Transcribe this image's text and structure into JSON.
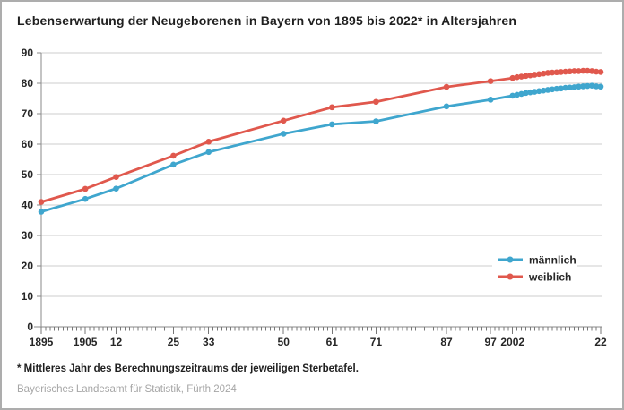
{
  "title": "Lebenserwartung der Neugeborenen in Bayern von 1895 bis 2022* in Altersjahren",
  "footnote": "* Mittleres Jahr des Berechnungszeitraums der jeweiligen Sterbetafel.",
  "source": "Bayerisches Landesamt für Statistik, Fürth 2024",
  "colors": {
    "maennlich": "#3FA6CE",
    "weiblich": "#E0584D",
    "grid": "#cccccc",
    "axis": "#8a8a8a",
    "tick": "#777777",
    "text": "#262626",
    "source_text": "#a6a6a6",
    "legend_bg": "#ffffff"
  },
  "chart_data": {
    "type": "line",
    "title": "Lebenserwartung der Neugeborenen in Bayern von 1895 bis 2022* in Altersjahren",
    "xlabel": "",
    "ylabel": "",
    "xlim": [
      1895,
      2022
    ],
    "ylim": [
      0,
      90
    ],
    "ytick_step": 10,
    "grid": true,
    "legend_position": "right-middle",
    "x": [
      1895,
      1905,
      1912,
      1925,
      1933,
      1950,
      1961,
      1971,
      1987,
      1997,
      2002,
      2003,
      2004,
      2005,
      2006,
      2007,
      2008,
      2009,
      2010,
      2011,
      2012,
      2013,
      2014,
      2015,
      2016,
      2017,
      2018,
      2019,
      2020,
      2021,
      2022
    ],
    "xticks": [
      {
        "year": 1895,
        "label": "1895"
      },
      {
        "year": 1905,
        "label": "1905"
      },
      {
        "year": 1912,
        "label": "12"
      },
      {
        "year": 1925,
        "label": "25"
      },
      {
        "year": 1933,
        "label": "33"
      },
      {
        "year": 1950,
        "label": "50"
      },
      {
        "year": 1961,
        "label": "61"
      },
      {
        "year": 1971,
        "label": "71"
      },
      {
        "year": 1987,
        "label": "87"
      },
      {
        "year": 1997,
        "label": "97"
      },
      {
        "year": 2002,
        "label": "2002"
      },
      {
        "year": 2022,
        "label": "22"
      }
    ],
    "series": [
      {
        "name": "männlich",
        "color_key": "maennlich",
        "values": [
          37.8,
          42.0,
          45.4,
          53.3,
          57.4,
          63.4,
          66.5,
          67.5,
          72.4,
          74.6,
          75.9,
          76.2,
          76.5,
          76.8,
          77.0,
          77.2,
          77.4,
          77.6,
          77.8,
          78.0,
          78.2,
          78.3,
          78.5,
          78.6,
          78.7,
          78.9,
          79.0,
          79.1,
          79.2,
          79.0,
          78.9
        ]
      },
      {
        "name": "weiblich",
        "color_key": "weiblich",
        "values": [
          41.0,
          45.3,
          49.2,
          56.2,
          60.8,
          67.7,
          72.1,
          73.9,
          78.8,
          80.7,
          81.7,
          82.0,
          82.2,
          82.4,
          82.6,
          82.8,
          83.0,
          83.2,
          83.4,
          83.5,
          83.6,
          83.7,
          83.8,
          83.9,
          84.0,
          84.0,
          84.1,
          84.1,
          84.0,
          83.8,
          83.7
        ]
      }
    ]
  }
}
